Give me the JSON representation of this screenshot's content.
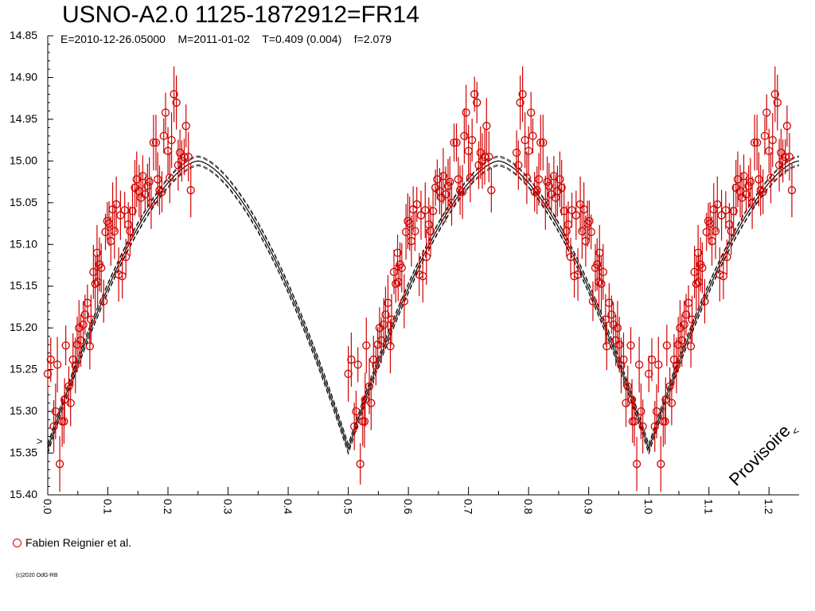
{
  "header": {
    "title": "USNO-A2.0 1125-1872912=FR14",
    "subtitle": "E=2010-12-26.05000    M=2011-01-02    T=0.409 (0.004)    f=2.079"
  },
  "legend": {
    "label": "Fabien Reignier et al.",
    "marker_color": "#d00000"
  },
  "watermark": "Provisoire",
  "copyright": "(c)2020 OdG-RB",
  "colors": {
    "points": "#d00000",
    "curve": "#000000",
    "axis": "#000000"
  },
  "chart_data": {
    "type": "scatter",
    "x_label": "",
    "y_label": "",
    "x_range": [
      0.0,
      1.25
    ],
    "y_range": [
      14.85,
      15.4
    ],
    "y_inverted": true,
    "x_ticks": [
      "0.0",
      "0.1",
      "0.2",
      "0.3",
      "0.4",
      "0.5",
      "0.6",
      "0.7",
      "0.8",
      "0.9",
      "1.0",
      "1.1",
      "1.2"
    ],
    "y_ticks": [
      "14.85",
      "14.90",
      "14.95",
      "15.00",
      "15.05",
      "15.10",
      "15.15",
      "15.20",
      "15.25",
      "15.30",
      "15.35",
      "15.40"
    ],
    "grid": false,
    "model": {
      "description_source": "eclipsing binary light curve, equal minima",
      "max_mag": 15.0,
      "min_mag": 15.345,
      "minima_phases": [
        0.0,
        0.5,
        1.0
      ],
      "envelope_offsets": [
        -0.006,
        -0.003,
        0.0,
        0.003,
        0.006
      ]
    },
    "series": [
      {
        "name": "Fabien Reignier et al.",
        "points": [
          [
            0.0,
            15.255
          ],
          [
            0.005,
            15.238
          ],
          [
            0.01,
            15.318
          ],
          [
            0.013,
            15.3
          ],
          [
            0.016,
            15.244
          ],
          [
            0.02,
            15.363
          ],
          [
            0.024,
            15.312
          ],
          [
            0.028,
            15.286
          ],
          [
            0.03,
            15.221
          ],
          [
            0.035,
            15.27
          ],
          [
            0.038,
            15.29
          ],
          [
            0.042,
            15.238
          ],
          [
            0.046,
            15.245
          ],
          [
            0.049,
            15.22
          ],
          [
            0.052,
            15.2
          ],
          [
            0.055,
            15.215
          ],
          [
            0.059,
            15.196
          ],
          [
            0.062,
            15.184
          ],
          [
            0.066,
            15.17
          ],
          [
            0.07,
            15.222
          ],
          [
            0.072,
            15.19
          ],
          [
            0.076,
            15.133
          ],
          [
            0.079,
            15.147
          ],
          [
            0.082,
            15.11
          ],
          [
            0.086,
            15.124
          ],
          [
            0.089,
            15.128
          ],
          [
            0.093,
            15.168
          ],
          [
            0.096,
            15.085
          ],
          [
            0.099,
            15.072
          ],
          [
            0.102,
            15.075
          ],
          [
            0.105,
            15.096
          ],
          [
            0.108,
            15.058
          ],
          [
            0.111,
            15.084
          ],
          [
            0.114,
            15.052
          ],
          [
            0.118,
            15.136
          ],
          [
            0.121,
            15.065
          ],
          [
            0.124,
            15.138
          ],
          [
            0.128,
            15.059
          ],
          [
            0.13,
            15.115
          ],
          [
            0.134,
            15.076
          ],
          [
            0.137,
            15.084
          ],
          [
            0.141,
            15.06
          ],
          [
            0.145,
            15.032
          ],
          [
            0.148,
            15.022
          ],
          [
            0.152,
            15.036
          ],
          [
            0.155,
            15.044
          ],
          [
            0.158,
            15.018
          ],
          [
            0.162,
            15.04
          ],
          [
            0.166,
            15.03
          ],
          [
            0.169,
            15.025
          ],
          [
            0.172,
            15.05
          ],
          [
            0.176,
            14.978
          ],
          [
            0.18,
            14.978
          ],
          [
            0.183,
            15.022
          ],
          [
            0.186,
            15.035
          ],
          [
            0.19,
            15.037
          ],
          [
            0.193,
            14.97
          ],
          [
            0.196,
            14.942
          ],
          [
            0.2,
            14.988
          ],
          [
            0.203,
            15.02
          ],
          [
            0.206,
            14.975
          ],
          [
            0.21,
            14.92
          ],
          [
            0.214,
            14.93
          ],
          [
            0.217,
            15.005
          ],
          [
            0.22,
            14.99
          ],
          [
            0.223,
            15.0
          ],
          [
            0.227,
            14.995
          ],
          [
            0.23,
            14.958
          ],
          [
            0.234,
            14.995
          ],
          [
            0.238,
            15.035
          ],
          [
            0.027,
            15.312
          ],
          [
            0.083,
            15.145
          ]
        ]
      }
    ]
  }
}
